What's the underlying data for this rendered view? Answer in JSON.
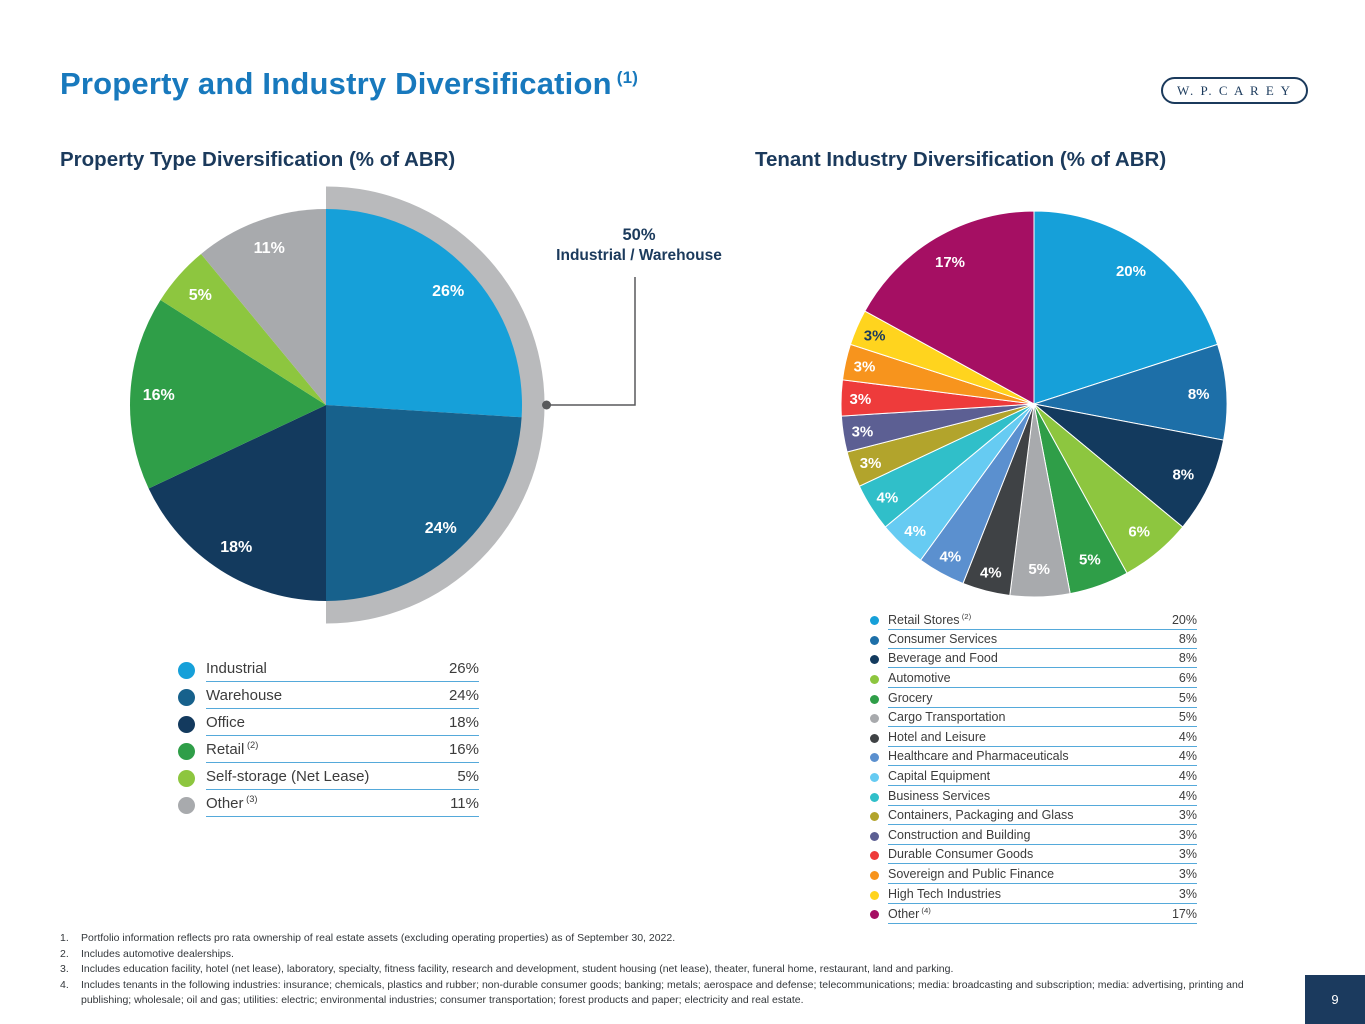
{
  "header": {
    "title": "Property and Industry Diversification",
    "title_sup": "(1)",
    "logo": "W. P. C A R E Y"
  },
  "sections": {
    "left_heading": "Property Type Diversification (% of ABR)",
    "right_heading": "Tenant Industry Diversification (% of ABR)"
  },
  "callout": {
    "percent": "50%",
    "label": "Industrial / Warehouse"
  },
  "footer": {
    "page_number": "9"
  },
  "footnotes": [
    {
      "num": "1.",
      "text": "Portfolio information reflects pro rata ownership of real estate assets (excluding operating properties) as of September 30, 2022."
    },
    {
      "num": "2.",
      "text": "Includes automotive dealerships."
    },
    {
      "num": "3.",
      "text": "Includes education facility, hotel (net lease), laboratory, specialty, fitness facility, research and development, student housing (net lease), theater, funeral home, restaurant, land and parking."
    },
    {
      "num": "4.",
      "text": "Includes tenants in the following industries: insurance; chemicals, plastics and rubber; non-durable consumer goods; banking; metals; aerospace and defense; telecommunications; media: broadcasting and subscription; media: advertising, printing and publishing; wholesale; oil and gas; utilities: electric; environmental industries; consumer transportation; forest products and paper; electricity and real estate."
    }
  ],
  "chart_data": [
    {
      "type": "pie",
      "title": "Property Type Diversification (% of ABR)",
      "start_angle_deg": 0,
      "direction": "clockwise",
      "annotation": {
        "text": "50% Industrial / Warehouse",
        "arc_span_pct": 50,
        "arc_color": "#b9babc",
        "line_color": "#58595b"
      },
      "slices": [
        {
          "label": "Industrial",
          "sup": "",
          "value": 26,
          "color": "#16a0d9",
          "label_color": "#ffffff"
        },
        {
          "label": "Warehouse",
          "sup": "",
          "value": 24,
          "color": "#17618c",
          "label_color": "#ffffff"
        },
        {
          "label": "Office",
          "sup": "",
          "value": 18,
          "color": "#133a5e",
          "label_color": "#ffffff"
        },
        {
          "label": "Retail",
          "sup": "(2)",
          "value": 16,
          "color": "#2f9e48",
          "label_color": "#ffffff"
        },
        {
          "label": "Self-storage (Net Lease)",
          "sup": "",
          "value": 5,
          "color": "#8dc63f",
          "label_color": "#ffffff"
        },
        {
          "label": "Other",
          "sup": "(3)",
          "value": 11,
          "color": "#a8aaad",
          "label_color": "#ffffff"
        }
      ]
    },
    {
      "type": "pie",
      "title": "Tenant Industry Diversification (% of ABR)",
      "start_angle_deg": 0,
      "direction": "clockwise",
      "slices": [
        {
          "label": "Retail Stores",
          "sup": "(2)",
          "value": 20,
          "color": "#16a0d9",
          "label_color": "#ffffff"
        },
        {
          "label": "Consumer Services",
          "sup": "",
          "value": 8,
          "color": "#1d6fa8",
          "label_color": "#ffffff"
        },
        {
          "label": "Beverage and Food",
          "sup": "",
          "value": 8,
          "color": "#133a5e",
          "label_color": "#ffffff"
        },
        {
          "label": "Automotive",
          "sup": "",
          "value": 6,
          "color": "#8dc63f",
          "label_color": "#ffffff"
        },
        {
          "label": "Grocery",
          "sup": "",
          "value": 5,
          "color": "#2f9e48",
          "label_color": "#ffffff"
        },
        {
          "label": "Cargo Transportation",
          "sup": "",
          "value": 5,
          "color": "#a8aaad",
          "label_color": "#ffffff"
        },
        {
          "label": "Hotel and Leisure",
          "sup": "",
          "value": 4,
          "color": "#3f4245",
          "label_color": "#ffffff"
        },
        {
          "label": "Healthcare and Pharmaceuticals",
          "sup": "",
          "value": 4,
          "color": "#5b90cf",
          "label_color": "#ffffff"
        },
        {
          "label": "Capital Equipment",
          "sup": "",
          "value": 4,
          "color": "#66cbf2",
          "label_color": "#ffffff"
        },
        {
          "label": "Business Services",
          "sup": "",
          "value": 4,
          "color": "#30bfc9",
          "label_color": "#ffffff"
        },
        {
          "label": "Containers, Packaging and Glass",
          "sup": "",
          "value": 3,
          "color": "#b2a42c",
          "label_color": "#ffffff"
        },
        {
          "label": "Construction and Building",
          "sup": "",
          "value": 3,
          "color": "#5c5f93",
          "label_color": "#ffffff"
        },
        {
          "label": "Durable Consumer Goods",
          "sup": "",
          "value": 3,
          "color": "#ee3b3b",
          "label_color": "#ffffff"
        },
        {
          "label": "Sovereign and Public Finance",
          "sup": "",
          "value": 3,
          "color": "#f7941d",
          "label_color": "#ffffff"
        },
        {
          "label": "High Tech Industries",
          "sup": "",
          "value": 3,
          "color": "#ffd41e",
          "label_color": "#1b3a5c"
        },
        {
          "label": "Other",
          "sup": "(4)",
          "value": 17,
          "color": "#a50f63",
          "label_color": "#ffffff"
        }
      ]
    }
  ]
}
